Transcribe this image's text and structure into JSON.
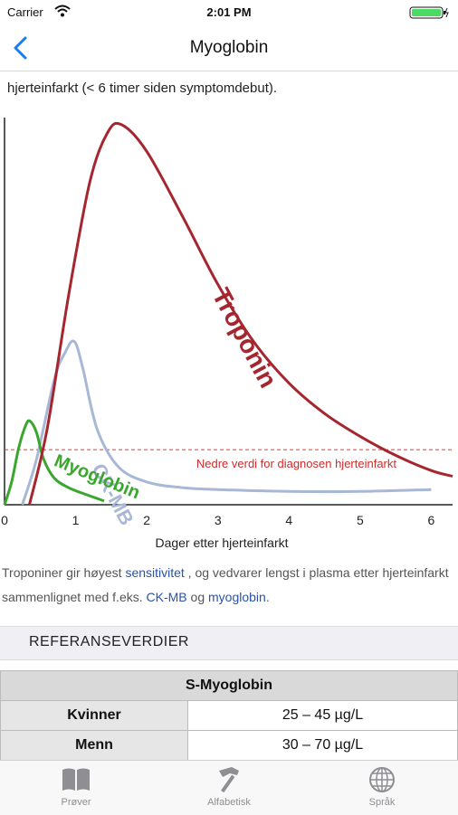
{
  "status_bar": {
    "carrier": "Carrier",
    "time": "2:01 PM"
  },
  "nav": {
    "title": "Myoglobin"
  },
  "intro": {
    "text": "hjerteinfarkt (< 6 timer siden symptomdebut)."
  },
  "chart_data": {
    "type": "line",
    "xlabel": "Dager etter hjerteinfarkt",
    "ylabel": "",
    "xlim": [
      0,
      6.3
    ],
    "x_ticks": [
      "0",
      "1",
      "2",
      "3",
      "4",
      "5",
      "6"
    ],
    "threshold_label": "Nedre verdi for diagnosen hjerteinfarkt",
    "threshold_value": 0.145,
    "series": [
      {
        "name": "Troponin",
        "color": "#a5262e",
        "x": [
          0.35,
          0.6,
          0.9,
          1.2,
          1.45,
          1.65,
          2.0,
          2.5,
          3.0,
          3.5,
          4.0,
          4.5,
          5.0,
          5.5,
          6.0,
          6.3
        ],
        "y": [
          0,
          0.2,
          0.55,
          0.85,
          0.98,
          1.0,
          0.93,
          0.76,
          0.58,
          0.43,
          0.32,
          0.24,
          0.18,
          0.13,
          0.09,
          0.075
        ]
      },
      {
        "name": "CK-MB",
        "color": "#a9b7d6",
        "x": [
          0.25,
          0.45,
          0.7,
          0.85,
          0.98,
          1.1,
          1.3,
          1.6,
          2.0,
          2.5,
          3.0,
          4.0,
          5.0,
          6.0
        ],
        "y": [
          0,
          0.12,
          0.33,
          0.4,
          0.43,
          0.36,
          0.2,
          0.1,
          0.06,
          0.045,
          0.04,
          0.035,
          0.035,
          0.04
        ]
      },
      {
        "name": "Myoglobin",
        "color": "#3aa62e",
        "x": [
          0.0,
          0.1,
          0.2,
          0.3,
          0.36,
          0.45,
          0.55,
          0.7,
          0.9,
          1.1,
          1.4
        ],
        "y": [
          0,
          0.06,
          0.15,
          0.21,
          0.22,
          0.19,
          0.12,
          0.07,
          0.045,
          0.03,
          0.01
        ]
      }
    ]
  },
  "caption": {
    "part1": "Troponiner gir høyest ",
    "link1": "sensitivitet",
    "part2": " , og vedvarer lengst i plasma etter hjerteinfarkt sammenlignet med f.eks. ",
    "link2": "CK-MB",
    "part3": " og ",
    "link3": "myoglobin",
    "part4": "."
  },
  "reference": {
    "section_title": "REFERANSEVERDIER",
    "table_title": "S-Myoglobin",
    "rows": [
      {
        "label": "Kvinner",
        "value": "25 – 45 µg/L"
      },
      {
        "label": "Menn",
        "value": "30 – 70 µg/L"
      }
    ]
  },
  "tabbar": {
    "tabs": [
      {
        "label": "Prøver",
        "icon": "book-icon"
      },
      {
        "label": "Alfabetisk",
        "icon": "hammer-icon"
      },
      {
        "label": "Språk",
        "icon": "globe-icon"
      }
    ]
  }
}
